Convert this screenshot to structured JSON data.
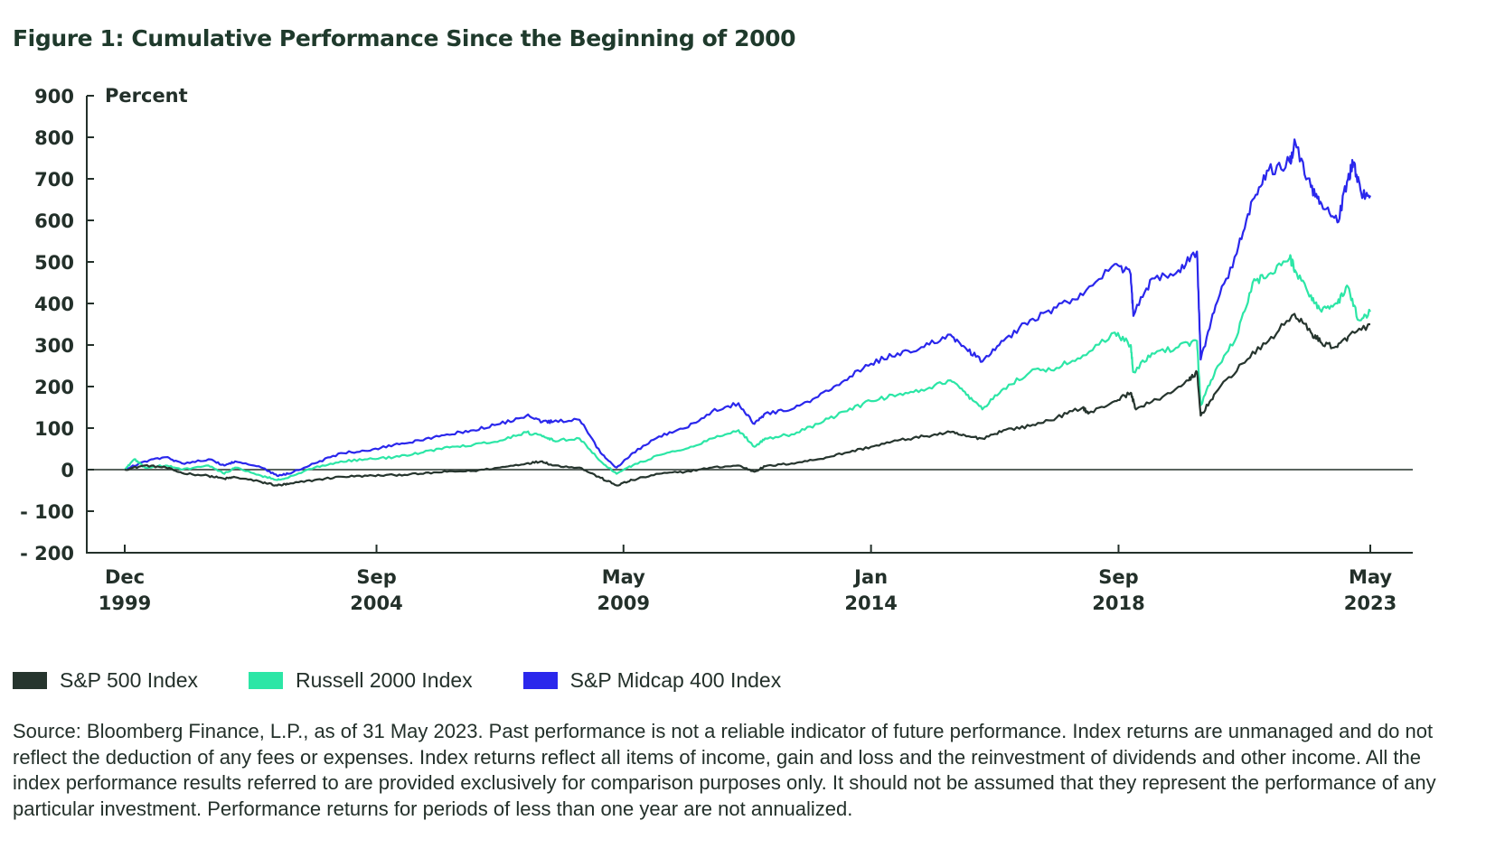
{
  "title": "Figure 1: Cumulative Performance Since the Beginning of 2000",
  "chart_data": {
    "type": "line",
    "title": "Figure 1: Cumulative Performance Since the Beginning of 2000",
    "ylabel": "Percent",
    "xlabel": "",
    "ylim": [
      -200,
      900
    ],
    "yticks": [
      900,
      800,
      700,
      600,
      500,
      400,
      300,
      200,
      100,
      0,
      -100,
      -200
    ],
    "ytick_labels": [
      "900",
      "800",
      "700",
      "600",
      "500",
      "400",
      "300",
      "200",
      "100",
      "0",
      "- 100",
      "- 200"
    ],
    "xlim": [
      1999.92,
      2023.42
    ],
    "xticks": [
      {
        "x": 1999.92,
        "month": "Dec",
        "year": "1999"
      },
      {
        "x": 2004.67,
        "month": "Sep",
        "year": "2004"
      },
      {
        "x": 2009.33,
        "month": "May",
        "year": "2009"
      },
      {
        "x": 2014.0,
        "month": "Jan",
        "year": "2014"
      },
      {
        "x": 2018.67,
        "month": "Sep",
        "year": "2018"
      },
      {
        "x": 2023.42,
        "month": "May",
        "year": "2023"
      }
    ],
    "zero_line": true,
    "legend_position": "bottom-left",
    "series": [
      {
        "name": "S&P 500 Index",
        "color": "#26352e",
        "points": [
          [
            1999.92,
            0
          ],
          [
            2000.3,
            10
          ],
          [
            2000.7,
            5
          ],
          [
            2001.0,
            -8
          ],
          [
            2001.5,
            -15
          ],
          [
            2001.8,
            -22
          ],
          [
            2002.0,
            -18
          ],
          [
            2002.5,
            -30
          ],
          [
            2002.8,
            -38
          ],
          [
            2003.0,
            -35
          ],
          [
            2003.5,
            -25
          ],
          [
            2004.0,
            -17
          ],
          [
            2004.5,
            -15
          ],
          [
            2005.0,
            -13
          ],
          [
            2005.5,
            -10
          ],
          [
            2006.0,
            -5
          ],
          [
            2006.5,
            -3
          ],
          [
            2007.0,
            5
          ],
          [
            2007.5,
            15
          ],
          [
            2007.8,
            20
          ],
          [
            2008.0,
            10
          ],
          [
            2008.5,
            5
          ],
          [
            2008.9,
            -20
          ],
          [
            2009.2,
            -38
          ],
          [
            2009.5,
            -25
          ],
          [
            2010.0,
            -10
          ],
          [
            2010.5,
            -5
          ],
          [
            2011.0,
            5
          ],
          [
            2011.5,
            10
          ],
          [
            2011.8,
            -5
          ],
          [
            2012.0,
            8
          ],
          [
            2012.5,
            15
          ],
          [
            2013.0,
            25
          ],
          [
            2013.5,
            40
          ],
          [
            2014.0,
            55
          ],
          [
            2014.5,
            70
          ],
          [
            2015.0,
            80
          ],
          [
            2015.5,
            90
          ],
          [
            2015.8,
            80
          ],
          [
            2016.1,
            75
          ],
          [
            2016.5,
            95
          ],
          [
            2017.0,
            105
          ],
          [
            2017.5,
            125
          ],
          [
            2018.0,
            150
          ],
          [
            2018.1,
            135
          ],
          [
            2018.6,
            165
          ],
          [
            2018.9,
            185
          ],
          [
            2019.0,
            145
          ],
          [
            2019.5,
            175
          ],
          [
            2020.0,
            215
          ],
          [
            2020.15,
            235
          ],
          [
            2020.22,
            130
          ],
          [
            2020.5,
            185
          ],
          [
            2021.0,
            255
          ],
          [
            2021.5,
            310
          ],
          [
            2021.99,
            375
          ],
          [
            2022.3,
            330
          ],
          [
            2022.5,
            305
          ],
          [
            2022.8,
            295
          ],
          [
            2023.0,
            320
          ],
          [
            2023.42,
            350
          ]
        ]
      },
      {
        "name": "Russell 2000 Index",
        "color": "#2ce6a6",
        "points": [
          [
            1999.92,
            0
          ],
          [
            2000.1,
            25
          ],
          [
            2000.3,
            5
          ],
          [
            2000.7,
            10
          ],
          [
            2001.0,
            0
          ],
          [
            2001.5,
            10
          ],
          [
            2001.8,
            -10
          ],
          [
            2002.0,
            5
          ],
          [
            2002.5,
            -15
          ],
          [
            2002.8,
            -25
          ],
          [
            2003.0,
            -20
          ],
          [
            2003.5,
            5
          ],
          [
            2004.0,
            20
          ],
          [
            2004.5,
            25
          ],
          [
            2005.0,
            30
          ],
          [
            2005.5,
            40
          ],
          [
            2006.0,
            55
          ],
          [
            2006.5,
            60
          ],
          [
            2007.0,
            70
          ],
          [
            2007.5,
            90
          ],
          [
            2007.8,
            80
          ],
          [
            2008.0,
            70
          ],
          [
            2008.5,
            75
          ],
          [
            2008.9,
            20
          ],
          [
            2009.2,
            -10
          ],
          [
            2009.5,
            10
          ],
          [
            2010.0,
            35
          ],
          [
            2010.5,
            50
          ],
          [
            2011.0,
            75
          ],
          [
            2011.5,
            95
          ],
          [
            2011.8,
            55
          ],
          [
            2012.0,
            75
          ],
          [
            2012.5,
            85
          ],
          [
            2013.0,
            110
          ],
          [
            2013.5,
            140
          ],
          [
            2014.0,
            165
          ],
          [
            2014.5,
            180
          ],
          [
            2015.0,
            190
          ],
          [
            2015.5,
            215
          ],
          [
            2015.8,
            180
          ],
          [
            2016.1,
            145
          ],
          [
            2016.5,
            195
          ],
          [
            2017.0,
            235
          ],
          [
            2017.5,
            245
          ],
          [
            2018.0,
            275
          ],
          [
            2018.6,
            330
          ],
          [
            2018.9,
            300
          ],
          [
            2018.95,
            235
          ],
          [
            2019.3,
            280
          ],
          [
            2019.8,
            295
          ],
          [
            2020.15,
            310
          ],
          [
            2020.22,
            155
          ],
          [
            2020.5,
            240
          ],
          [
            2020.9,
            320
          ],
          [
            2021.2,
            450
          ],
          [
            2021.5,
            470
          ],
          [
            2021.9,
            510
          ],
          [
            2022.0,
            480
          ],
          [
            2022.3,
            420
          ],
          [
            2022.5,
            380
          ],
          [
            2022.8,
            400
          ],
          [
            2023.0,
            440
          ],
          [
            2023.2,
            360
          ],
          [
            2023.42,
            380
          ]
        ]
      },
      {
        "name": "S&P Midcap 400 Index",
        "color": "#2a27ec",
        "points": [
          [
            1999.92,
            0
          ],
          [
            2000.3,
            20
          ],
          [
            2000.7,
            30
          ],
          [
            2001.0,
            15
          ],
          [
            2001.5,
            25
          ],
          [
            2001.8,
            10
          ],
          [
            2002.0,
            20
          ],
          [
            2002.5,
            5
          ],
          [
            2002.8,
            -15
          ],
          [
            2003.0,
            -10
          ],
          [
            2003.5,
            15
          ],
          [
            2004.0,
            40
          ],
          [
            2004.5,
            45
          ],
          [
            2005.0,
            60
          ],
          [
            2005.5,
            70
          ],
          [
            2006.0,
            85
          ],
          [
            2006.5,
            95
          ],
          [
            2007.0,
            110
          ],
          [
            2007.5,
            130
          ],
          [
            2007.8,
            115
          ],
          [
            2008.0,
            115
          ],
          [
            2008.5,
            120
          ],
          [
            2008.9,
            40
          ],
          [
            2009.2,
            5
          ],
          [
            2009.5,
            40
          ],
          [
            2010.0,
            80
          ],
          [
            2010.5,
            100
          ],
          [
            2011.0,
            140
          ],
          [
            2011.5,
            160
          ],
          [
            2011.8,
            110
          ],
          [
            2012.0,
            135
          ],
          [
            2012.5,
            145
          ],
          [
            2013.0,
            175
          ],
          [
            2013.5,
            215
          ],
          [
            2014.0,
            255
          ],
          [
            2014.5,
            280
          ],
          [
            2015.0,
            295
          ],
          [
            2015.5,
            325
          ],
          [
            2015.8,
            290
          ],
          [
            2016.1,
            260
          ],
          [
            2016.5,
            310
          ],
          [
            2017.0,
            360
          ],
          [
            2017.5,
            390
          ],
          [
            2018.0,
            420
          ],
          [
            2018.6,
            495
          ],
          [
            2018.9,
            470
          ],
          [
            2018.95,
            370
          ],
          [
            2019.3,
            460
          ],
          [
            2019.8,
            480
          ],
          [
            2020.15,
            525
          ],
          [
            2020.22,
            265
          ],
          [
            2020.5,
            395
          ],
          [
            2020.9,
            520
          ],
          [
            2021.2,
            650
          ],
          [
            2021.5,
            720
          ],
          [
            2021.9,
            740
          ],
          [
            2022.0,
            790
          ],
          [
            2022.3,
            680
          ],
          [
            2022.5,
            640
          ],
          [
            2022.8,
            595
          ],
          [
            2023.0,
            700
          ],
          [
            2023.1,
            740
          ],
          [
            2023.25,
            665
          ],
          [
            2023.42,
            660
          ]
        ]
      }
    ]
  },
  "legend": [
    {
      "label": "S&P 500 Index",
      "color": "#26352e"
    },
    {
      "label": "Russell 2000 Index",
      "color": "#2ce6a6"
    },
    {
      "label": "S&P Midcap 400 Index",
      "color": "#2a27ec"
    }
  ],
  "source": "Source: Bloomberg Finance, L.P., as of 31 May 2023. Past performance is not a reliable indicator of future performance. Index returns are unmanaged and do not reflect the deduction of any fees or expenses. Index returns reflect all items of income, gain and loss and the reinvestment of dividends and other income. All the index performance results referred to are provided exclusively for comparison purposes only. It should not be assumed that they represent the performance of any particular investment. Performance returns for periods of less than one year are not annualized."
}
